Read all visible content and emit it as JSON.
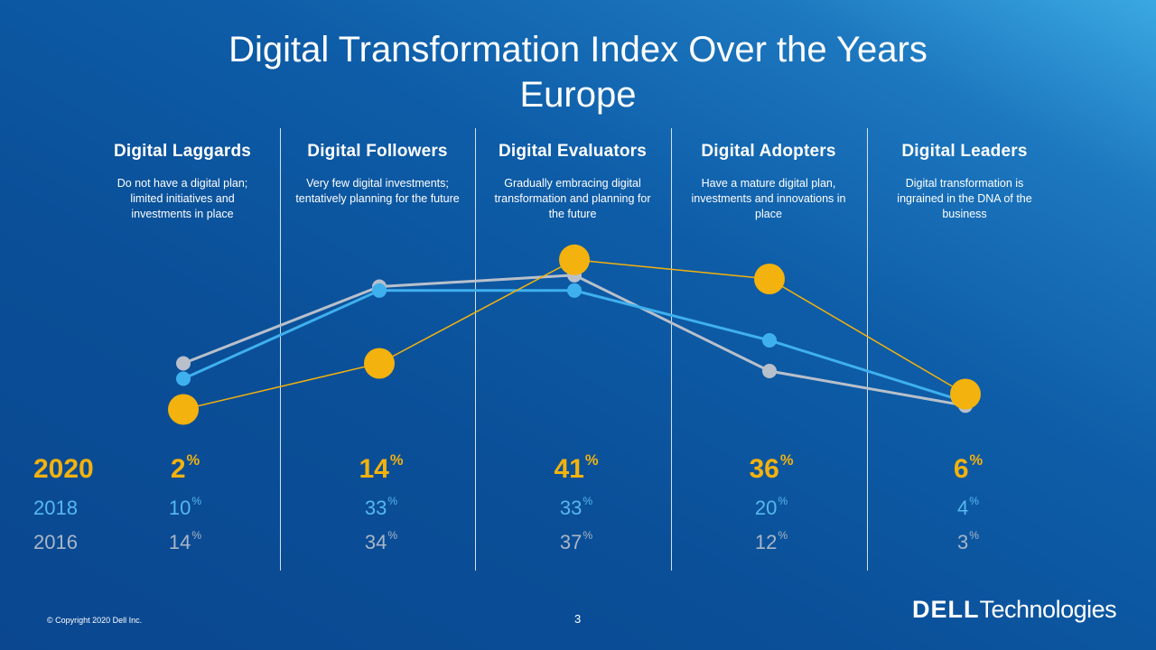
{
  "slide": {
    "title_line1": "Digital Transformation Index Over the Years",
    "title_line2": "Europe",
    "copyright": "© Copyright 2020 Dell Inc.",
    "page_number": "3",
    "logo_dell": "DELL",
    "logo_technologies": "Technologies"
  },
  "categories": [
    {
      "name": "Digital Laggards",
      "desc": "Do not have a digital plan; limited initiatives and investments in place"
    },
    {
      "name": "Digital Followers",
      "desc": "Very few digital investments; tentatively planning for the future"
    },
    {
      "name": "Digital Evaluators",
      "desc": "Gradually embracing digital transformation and planning for the future"
    },
    {
      "name": "Digital Adopters",
      "desc": "Have a mature digital plan, investments and innovations in place"
    },
    {
      "name": "Digital Leaders",
      "desc": "Digital transformation is ingrained in the DNA of the business"
    }
  ],
  "rows": {
    "y2020": {
      "label": "2020",
      "values": [
        "2",
        "14",
        "41",
        "36",
        "6"
      ]
    },
    "y2018": {
      "label": "2018",
      "values": [
        "10",
        "33",
        "33",
        "20",
        "4"
      ]
    },
    "y2016": {
      "label": "2016",
      "values": [
        "14",
        "34",
        "37",
        "12",
        "3"
      ]
    },
    "unit": "%"
  },
  "colors": {
    "y2020": "#f3b20d",
    "y2018": "#3fb0ee",
    "y2016": "#b8c0cb"
  },
  "chart_data": {
    "type": "line",
    "categories": [
      "Digital Laggards",
      "Digital Followers",
      "Digital Evaluators",
      "Digital Adopters",
      "Digital Leaders"
    ],
    "series": [
      {
        "name": "2020",
        "values": [
          2,
          14,
          41,
          36,
          6
        ]
      },
      {
        "name": "2018",
        "values": [
          10,
          33,
          33,
          20,
          4
        ]
      },
      {
        "name": "2016",
        "values": [
          14,
          34,
          37,
          12,
          3
        ]
      }
    ],
    "ylim": [
      0,
      50
    ],
    "grid": false,
    "title": "Digital Transformation Index Over the Years",
    "subtitle": "Europe"
  }
}
